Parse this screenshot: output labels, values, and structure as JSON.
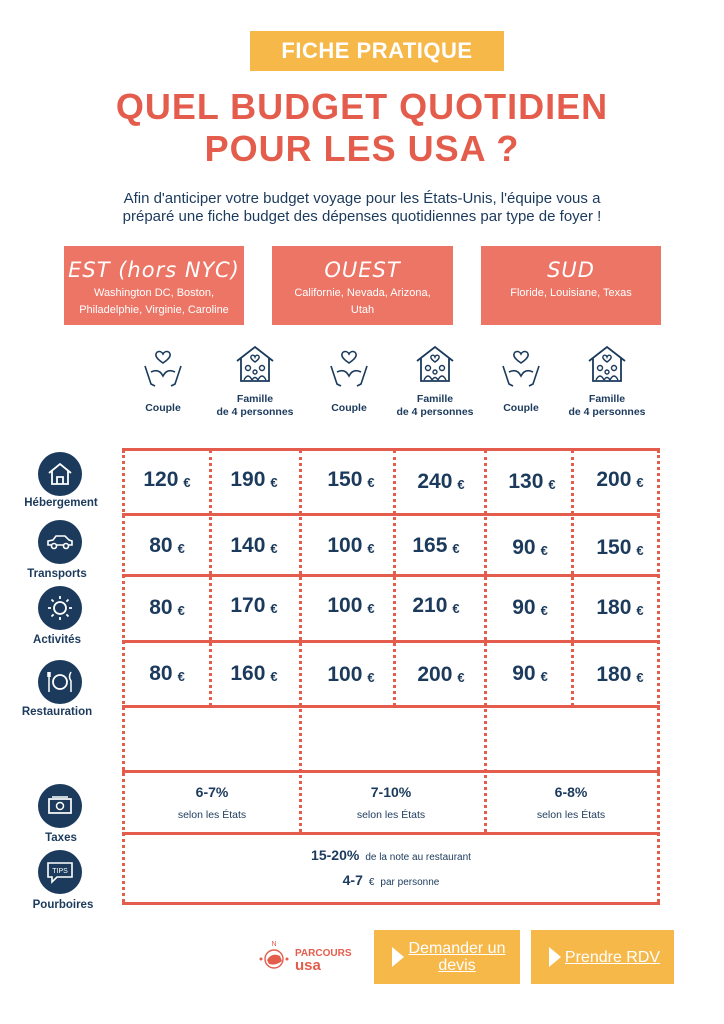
{
  "header": {
    "badge": "FICHE PRATIQUE",
    "title_line1": "QUEL BUDGET QUOTIDIEN",
    "title_line2": "POUR LES USA ?",
    "intro_line1": "Afin d'anticiper votre budget voyage pour les États-Unis, l'équipe vous a",
    "intro_line2": "préparé une fiche budget des dépenses quotidiennes par type de foyer !"
  },
  "regions": [
    {
      "name": "EST (hors NYC)",
      "desc": "Washington DC, Boston, Philadelphie, Virginie, Caroline"
    },
    {
      "name": "OUEST",
      "desc": "Californie, Nevada, Arizona, Utah"
    },
    {
      "name": "SUD",
      "desc": "Floride, Louisiane, Texas"
    }
  ],
  "columns": {
    "couple": "Couple",
    "famille_l1": "Famille",
    "famille_l2": "de 4 personnes"
  },
  "currency": "€",
  "rows": [
    {
      "label": "Hébergement",
      "icon": "house-icon",
      "values": [
        "120",
        "190",
        "150",
        "240",
        "130",
        "200"
      ]
    },
    {
      "label": "Transports",
      "icon": "car-icon",
      "values": [
        "80",
        "140",
        "100",
        "165",
        "90",
        "150"
      ]
    },
    {
      "label": "Activités",
      "icon": "sun-icon",
      "values": [
        "80",
        "170",
        "100",
        "210",
        "90",
        "180"
      ]
    },
    {
      "label": "Restauration",
      "icon": "plate-cutlery-icon",
      "values": [
        "80",
        "160",
        "100",
        "200",
        "90",
        "180"
      ]
    }
  ],
  "taxes": {
    "label": "Taxes",
    "icon": "money-icon",
    "regions": [
      {
        "pct": "6-7%",
        "sub": "selon les États"
      },
      {
        "pct": "7-10%",
        "sub": "selon les États"
      },
      {
        "pct": "6-8%",
        "sub": "selon les États"
      }
    ]
  },
  "tips": {
    "label": "Pourboires",
    "icon": "tips-icon",
    "line1_big": "15-20%",
    "line1_small": "de la note au restaurant",
    "line2_big": "4-7",
    "line2_small": "par personne"
  },
  "footer": {
    "brand_top": "PARCOURS",
    "brand_bottom": "usa",
    "compass_letter": "N",
    "cta1": "Demander un devis",
    "cta2": "Prendre RDV"
  },
  "colors": {
    "coral": "#e45d4c",
    "region_bg": "#ec7565",
    "navy": "#1b3a5c",
    "yellow": "#f7b84a"
  }
}
